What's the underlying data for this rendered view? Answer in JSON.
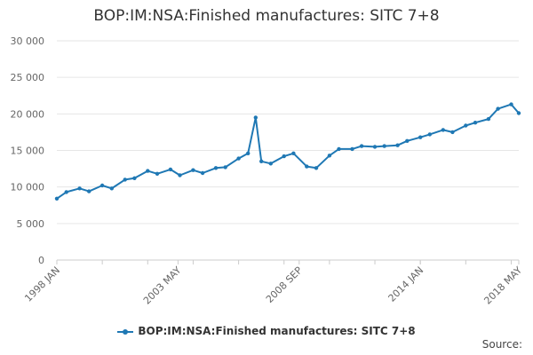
{
  "chart_data": {
    "type": "line",
    "title": "BOP:IM:NSA:Finished manufactures: SITC 7+8",
    "xlabel": "",
    "ylabel": "",
    "ylim": [
      0,
      30000
    ],
    "y_ticks": [
      "0",
      "5 000",
      "10 000",
      "15 000",
      "20 000",
      "25 000",
      "30 000"
    ],
    "y_tick_values": [
      0,
      5000,
      10000,
      15000,
      20000,
      25000,
      30000
    ],
    "x_ticks": [
      "1998 JAN",
      "2003 MAY",
      "2008 SEP",
      "2014 JAN",
      "2018 MAY"
    ],
    "x_range": [
      "1998-01",
      "2018-05"
    ],
    "grid": true,
    "legend_position": "bottom",
    "series": [
      {
        "name": "BOP:IM:NSA:Finished manufactures: SITC 7+8",
        "color": "#1f78b4",
        "x": [
          "1998-01",
          "1998-06",
          "1999-01",
          "1999-06",
          "2000-01",
          "2000-06",
          "2001-01",
          "2001-06",
          "2002-01",
          "2002-06",
          "2003-01",
          "2003-06",
          "2004-01",
          "2004-06",
          "2005-01",
          "2005-06",
          "2006-01",
          "2006-06",
          "2006-10",
          "2007-01",
          "2007-06",
          "2008-01",
          "2008-06",
          "2009-01",
          "2009-06",
          "2010-01",
          "2010-06",
          "2011-01",
          "2011-06",
          "2012-01",
          "2012-06",
          "2013-01",
          "2013-06",
          "2014-01",
          "2014-06",
          "2015-01",
          "2015-06",
          "2016-01",
          "2016-06",
          "2017-01",
          "2017-06",
          "2018-01",
          "2018-05"
        ],
        "values": [
          8400,
          9300,
          9800,
          9400,
          10200,
          9800,
          11000,
          11200,
          12200,
          11800,
          12400,
          11600,
          12300,
          11900,
          12600,
          12700,
          13900,
          14600,
          19500,
          13500,
          13200,
          14200,
          14600,
          12800,
          12600,
          14300,
          15200,
          15200,
          15600,
          15500,
          15600,
          15700,
          16300,
          16800,
          17200,
          17800,
          17500,
          18400,
          18800,
          19300,
          20700,
          21300,
          20100
        ]
      }
    ]
  },
  "source_label": "Source:"
}
